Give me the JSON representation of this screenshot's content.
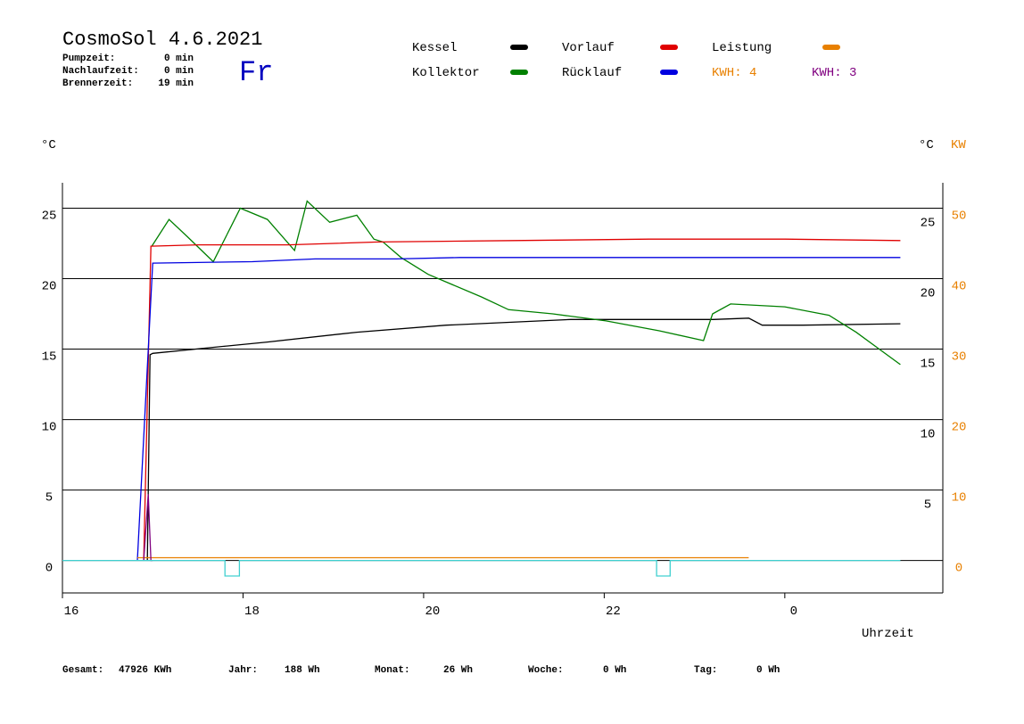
{
  "header": {
    "title": "CosmoSol 4.6.2021",
    "day": "Fr",
    "info": [
      {
        "label": "Pumpzeit:",
        "value": "0 min"
      },
      {
        "label": "Nachlaufzeit:",
        "value": "0 min"
      },
      {
        "label": "Brennerzeit:",
        "value": "19 min"
      }
    ],
    "kwh": [
      {
        "text": "KWH: 4",
        "color": "#e88000"
      },
      {
        "text": "KWH: 3",
        "color": "#800080"
      }
    ]
  },
  "footer": [
    {
      "label": "Gesamt:",
      "value": "47926 KWh"
    },
    {
      "label": "Jahr:",
      "value": "188 Wh"
    },
    {
      "label": "Monat:",
      "value": "26 Wh"
    },
    {
      "label": "Woche:",
      "value": "0 Wh"
    },
    {
      "label": "Tag:",
      "value": "0 Wh"
    }
  ],
  "chart_data": {
    "type": "line",
    "ylabel": "°C",
    "y2label_c": "°C",
    "y2label": "KW",
    "xlabel": "Uhrzeit",
    "xlim": [
      16,
      25.75
    ],
    "xticks": [
      16,
      18,
      20,
      22,
      {
        "value": 24,
        "label": "0"
      }
    ],
    "ylim": [
      -2.3,
      26.8
    ],
    "yticks": [
      0,
      5,
      10,
      15,
      20,
      25
    ],
    "yticks_right": [
      5,
      10,
      15,
      20,
      25
    ],
    "y2lim": [
      -4.6,
      53.6
    ],
    "y2ticks": [
      0,
      10,
      20,
      30,
      40,
      50
    ],
    "y2color": "#e88000",
    "grid": true,
    "series": [
      {
        "name": "Kessel",
        "color": "#000000",
        "x": [
          16.94,
          16.97,
          17.0,
          17.64,
          18.27,
          19.26,
          20.25,
          21.63,
          23.21,
          23.6,
          23.75,
          24.2,
          25.28
        ],
        "values": [
          0,
          14.6,
          14.7,
          15.1,
          15.5,
          16.2,
          16.7,
          17.1,
          17.1,
          17.2,
          16.7,
          16.7,
          16.8
        ]
      },
      {
        "name": "Kollektor",
        "color": "#008000",
        "x": [
          16.99,
          17.18,
          17.38,
          17.67,
          17.97,
          18.27,
          18.57,
          18.71,
          18.96,
          19.26,
          19.45,
          19.55,
          19.75,
          20.05,
          20.64,
          20.94,
          21.43,
          22.02,
          22.61,
          23.1,
          23.2,
          23.4,
          24.0,
          24.49,
          24.79,
          25.28
        ],
        "values": [
          22.3,
          24.2,
          23.0,
          21.2,
          25.0,
          24.2,
          22.0,
          25.5,
          24.0,
          24.5,
          22.8,
          22.6,
          21.5,
          20.3,
          18.7,
          17.8,
          17.5,
          17.0,
          16.3,
          15.6,
          17.5,
          18.2,
          18.0,
          17.4,
          16.2,
          13.9
        ]
      },
      {
        "name": "Vorlauf",
        "color": "#e00000",
        "x": [
          16.9,
          16.98,
          17.5,
          18.5,
          19.5,
          21.0,
          22.5,
          24.0,
          25.28
        ],
        "values": [
          0,
          22.3,
          22.4,
          22.4,
          22.6,
          22.7,
          22.8,
          22.8,
          22.7
        ]
      },
      {
        "name": "Rücklauf",
        "color": "#0000e0",
        "x": [
          16.83,
          17.0,
          18.1,
          18.8,
          19.7,
          20.4,
          25.28
        ],
        "values": [
          0,
          21.1,
          21.2,
          21.4,
          21.4,
          21.5,
          21.5
        ]
      },
      {
        "name": "Leistung",
        "color": "#e88000",
        "axis": "y2",
        "x": [
          16.83,
          23.6
        ],
        "values": [
          0.4,
          0.4
        ]
      },
      {
        "color": "#800080",
        "x": [
          16.9,
          16.95,
          16.98,
          17.0
        ],
        "values": [
          0,
          4.7,
          0,
          0
        ]
      },
      {
        "color": "#40d0d0",
        "x": [
          16,
          17.8,
          17.8,
          17.96,
          17.96,
          22.58,
          22.58,
          22.73,
          22.73,
          25.28
        ],
        "values": [
          0,
          0,
          -1.1,
          -1.1,
          0,
          0,
          -1.1,
          -1.1,
          0,
          0
        ]
      }
    ]
  }
}
